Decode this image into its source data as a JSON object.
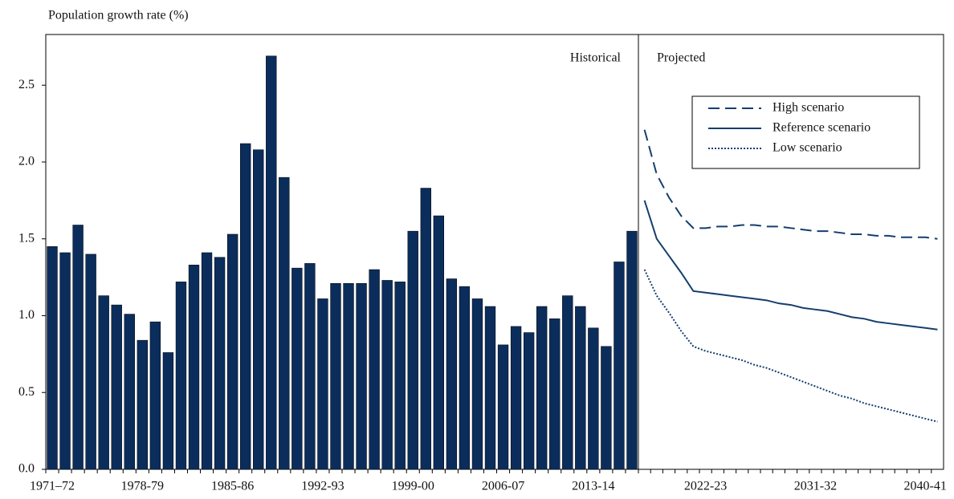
{
  "chart_data": {
    "type": "bar",
    "y_label": "Population growth rate (%)",
    "annotations": [
      "Historical",
      "Projected"
    ],
    "categories": [
      "1971–72",
      null,
      null,
      null,
      null,
      null,
      null,
      "1978-79",
      null,
      null,
      null,
      null,
      null,
      null,
      "1985-86",
      null,
      null,
      null,
      null,
      null,
      null,
      "1992-93",
      null,
      null,
      null,
      null,
      null,
      null,
      "1999-00",
      null,
      null,
      null,
      null,
      null,
      null,
      "2006-07",
      null,
      null,
      null,
      null,
      null,
      null,
      "2013-14",
      null,
      null,
      null,
      null,
      null,
      null,
      null,
      null,
      "2022-23",
      null,
      null,
      null,
      null,
      null,
      null,
      null,
      null,
      "2031-32",
      null,
      null,
      null,
      null,
      null,
      null,
      null,
      null,
      "2040-41",
      null
    ],
    "series": [
      {
        "type": "bar",
        "color": "#0b2d5c",
        "values": [
          1.45,
          1.41,
          1.59,
          1.4,
          1.13,
          1.07,
          1.01,
          0.84,
          0.96,
          0.76,
          1.22,
          1.33,
          1.41,
          1.38,
          1.53,
          2.12,
          2.08,
          2.69,
          1.9,
          1.31,
          1.34,
          1.11,
          1.21,
          1.21,
          1.21,
          1.3,
          1.23,
          1.22,
          1.55,
          1.83,
          1.65,
          1.24,
          1.19,
          1.11,
          1.06,
          0.81,
          0.93,
          0.89,
          1.06,
          0.98,
          1.13,
          1.06,
          0.92,
          0.8,
          1.35,
          1.55,
          null,
          null,
          null,
          null,
          null,
          null,
          null,
          null,
          null,
          null,
          null,
          null,
          null,
          null,
          null,
          null,
          null,
          null,
          null,
          null,
          null,
          null,
          null,
          null,
          null
        ]
      },
      {
        "type": "line",
        "name": "High scenario",
        "color": "#153e6e",
        "dash": "dashed",
        "values": [
          null,
          null,
          null,
          null,
          null,
          null,
          null,
          null,
          null,
          null,
          null,
          null,
          null,
          null,
          null,
          null,
          null,
          null,
          null,
          null,
          null,
          null,
          null,
          null,
          null,
          null,
          null,
          null,
          null,
          null,
          null,
          null,
          null,
          null,
          null,
          null,
          null,
          null,
          null,
          null,
          null,
          null,
          null,
          null,
          null,
          null,
          2.21,
          1.92,
          1.77,
          1.65,
          1.57,
          1.57,
          1.58,
          1.58,
          1.59,
          1.59,
          1.58,
          1.58,
          1.57,
          1.56,
          1.55,
          1.55,
          1.54,
          1.53,
          1.53,
          1.52,
          1.52,
          1.51,
          1.51,
          1.51,
          1.5
        ]
      },
      {
        "type": "line",
        "name": "Reference scenario",
        "color": "#153e6e",
        "dash": "solid",
        "values": [
          null,
          null,
          null,
          null,
          null,
          null,
          null,
          null,
          null,
          null,
          null,
          null,
          null,
          null,
          null,
          null,
          null,
          null,
          null,
          null,
          null,
          null,
          null,
          null,
          null,
          null,
          null,
          null,
          null,
          null,
          null,
          null,
          null,
          null,
          null,
          null,
          null,
          null,
          null,
          null,
          null,
          null,
          null,
          null,
          null,
          null,
          1.75,
          1.5,
          1.39,
          1.28,
          1.16,
          1.15,
          1.14,
          1.13,
          1.12,
          1.11,
          1.1,
          1.08,
          1.07,
          1.05,
          1.04,
          1.03,
          1.01,
          0.99,
          0.98,
          0.96,
          0.95,
          0.94,
          0.93,
          0.92,
          0.91
        ]
      },
      {
        "type": "line",
        "name": "Low scenario",
        "color": "#153e6e",
        "dash": "dotted",
        "values": [
          null,
          null,
          null,
          null,
          null,
          null,
          null,
          null,
          null,
          null,
          null,
          null,
          null,
          null,
          null,
          null,
          null,
          null,
          null,
          null,
          null,
          null,
          null,
          null,
          null,
          null,
          null,
          null,
          null,
          null,
          null,
          null,
          null,
          null,
          null,
          null,
          null,
          null,
          null,
          null,
          null,
          null,
          null,
          null,
          null,
          null,
          1.3,
          1.13,
          1.02,
          0.9,
          0.8,
          0.77,
          0.75,
          0.73,
          0.71,
          0.68,
          0.66,
          0.63,
          0.6,
          0.57,
          0.54,
          0.51,
          0.48,
          0.46,
          0.43,
          0.41,
          0.39,
          0.37,
          0.35,
          0.33,
          0.31
        ]
      }
    ],
    "ylim": [
      0,
      2.83
    ],
    "yticks": [
      {
        "value": 0,
        "label": "0.0"
      },
      {
        "value": 0.5,
        "label": "0.5"
      },
      {
        "value": 1,
        "label": "1.0"
      },
      {
        "value": 1.5,
        "label": "1.5"
      },
      {
        "value": 2,
        "label": "2.0"
      },
      {
        "value": 2.5,
        "label": "2.5"
      }
    ],
    "grid": false,
    "legend": "top-right"
  }
}
